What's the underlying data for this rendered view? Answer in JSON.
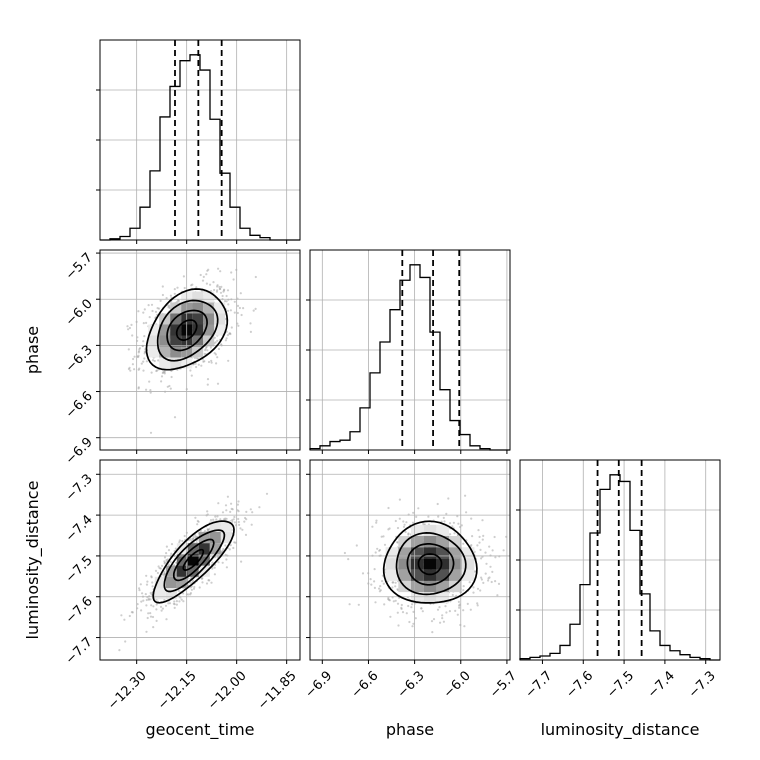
{
  "chart_data": {
    "type": "corner",
    "parameters": [
      "geocent_time",
      "phase",
      "luminosity_distance"
    ],
    "axis_labels": {
      "x": [
        "geocent_time",
        "phase",
        "luminosity_distance"
      ],
      "y": [
        "",
        "phase",
        "luminosity_distance"
      ]
    },
    "ranges": {
      "geocent_time": [
        -12.41,
        -11.81
      ],
      "phase": [
        -6.98,
        -5.68
      ],
      "luminosity_distance": [
        -7.755,
        -7.265
      ]
    },
    "ticks": {
      "geocent_time": [
        {
          "v": -12.3,
          "label": "−12.30"
        },
        {
          "v": -12.15,
          "label": "−12.15"
        },
        {
          "v": -12.0,
          "label": "−12.00"
        },
        {
          "v": -11.85,
          "label": "−11.85"
        }
      ],
      "phase": [
        {
          "v": -6.9,
          "label": "−6.9"
        },
        {
          "v": -6.6,
          "label": "−6.6"
        },
        {
          "v": -6.3,
          "label": "−6.3"
        },
        {
          "v": -6.0,
          "label": "−6.0"
        },
        {
          "v": -5.7,
          "label": "−5.7"
        }
      ],
      "luminosity_distance": [
        {
          "v": -7.7,
          "label": "−7.7"
        },
        {
          "v": -7.6,
          "label": "−7.6"
        },
        {
          "v": -7.5,
          "label": "−7.5"
        },
        {
          "v": -7.4,
          "label": "−7.4"
        },
        {
          "v": -7.3,
          "label": "−7.3"
        }
      ]
    },
    "marginals": [
      {
        "parameter": "geocent_time",
        "quantiles": [
          -12.185,
          -12.115,
          -12.045
        ],
        "bin_start": -12.41,
        "bin_width": 0.03,
        "counts": [
          0,
          1,
          3,
          10,
          28,
          59,
          105,
          131,
          153,
          158,
          145,
          103,
          57,
          28,
          10,
          4,
          2,
          0,
          0,
          0
        ]
      },
      {
        "parameter": "phase",
        "quantiles": [
          -6.38,
          -6.18,
          -6.01
        ],
        "bin_start": -6.98,
        "bin_width": 0.065,
        "counts": [
          1,
          3,
          6,
          7,
          13,
          30,
          55,
          77,
          100,
          121,
          132,
          123,
          84,
          43,
          21,
          11,
          3,
          1,
          0,
          0
        ]
      },
      {
        "parameter": "luminosity_distance",
        "quantiles": [
          -7.565,
          -7.513,
          -7.457
        ],
        "bin_start": -7.755,
        "bin_width": 0.0245,
        "counts": [
          1,
          2,
          3,
          5,
          11,
          27,
          57,
          96,
          129,
          140,
          135,
          98,
          50,
          22,
          11,
          7,
          4,
          2,
          1,
          0
        ]
      }
    ],
    "pairs": [
      {
        "x": "geocent_time",
        "y": "phase",
        "center": [
          -12.15,
          -6.2
        ],
        "sigma": [
          0.06,
          0.13
        ],
        "corr": 0.35
      },
      {
        "x": "geocent_time",
        "y": "luminosity_distance",
        "center": [
          -12.13,
          -7.51
        ],
        "sigma": [
          0.06,
          0.05
        ],
        "corr": 0.8
      },
      {
        "x": "phase",
        "y": "luminosity_distance",
        "center": [
          -6.2,
          -7.52
        ],
        "sigma": [
          0.15,
          0.05
        ],
        "corr": 0.0
      }
    ],
    "contour_levels": [
      "0.5-sigma",
      "1-sigma",
      "1.5-sigma",
      "2-sigma"
    ],
    "grid": true,
    "histogram_color": "#000000",
    "quantile_line_style": "dashed",
    "scatter_color": "#9e9e9e",
    "density_colormap": [
      "#ffffff",
      "#000000"
    ]
  }
}
